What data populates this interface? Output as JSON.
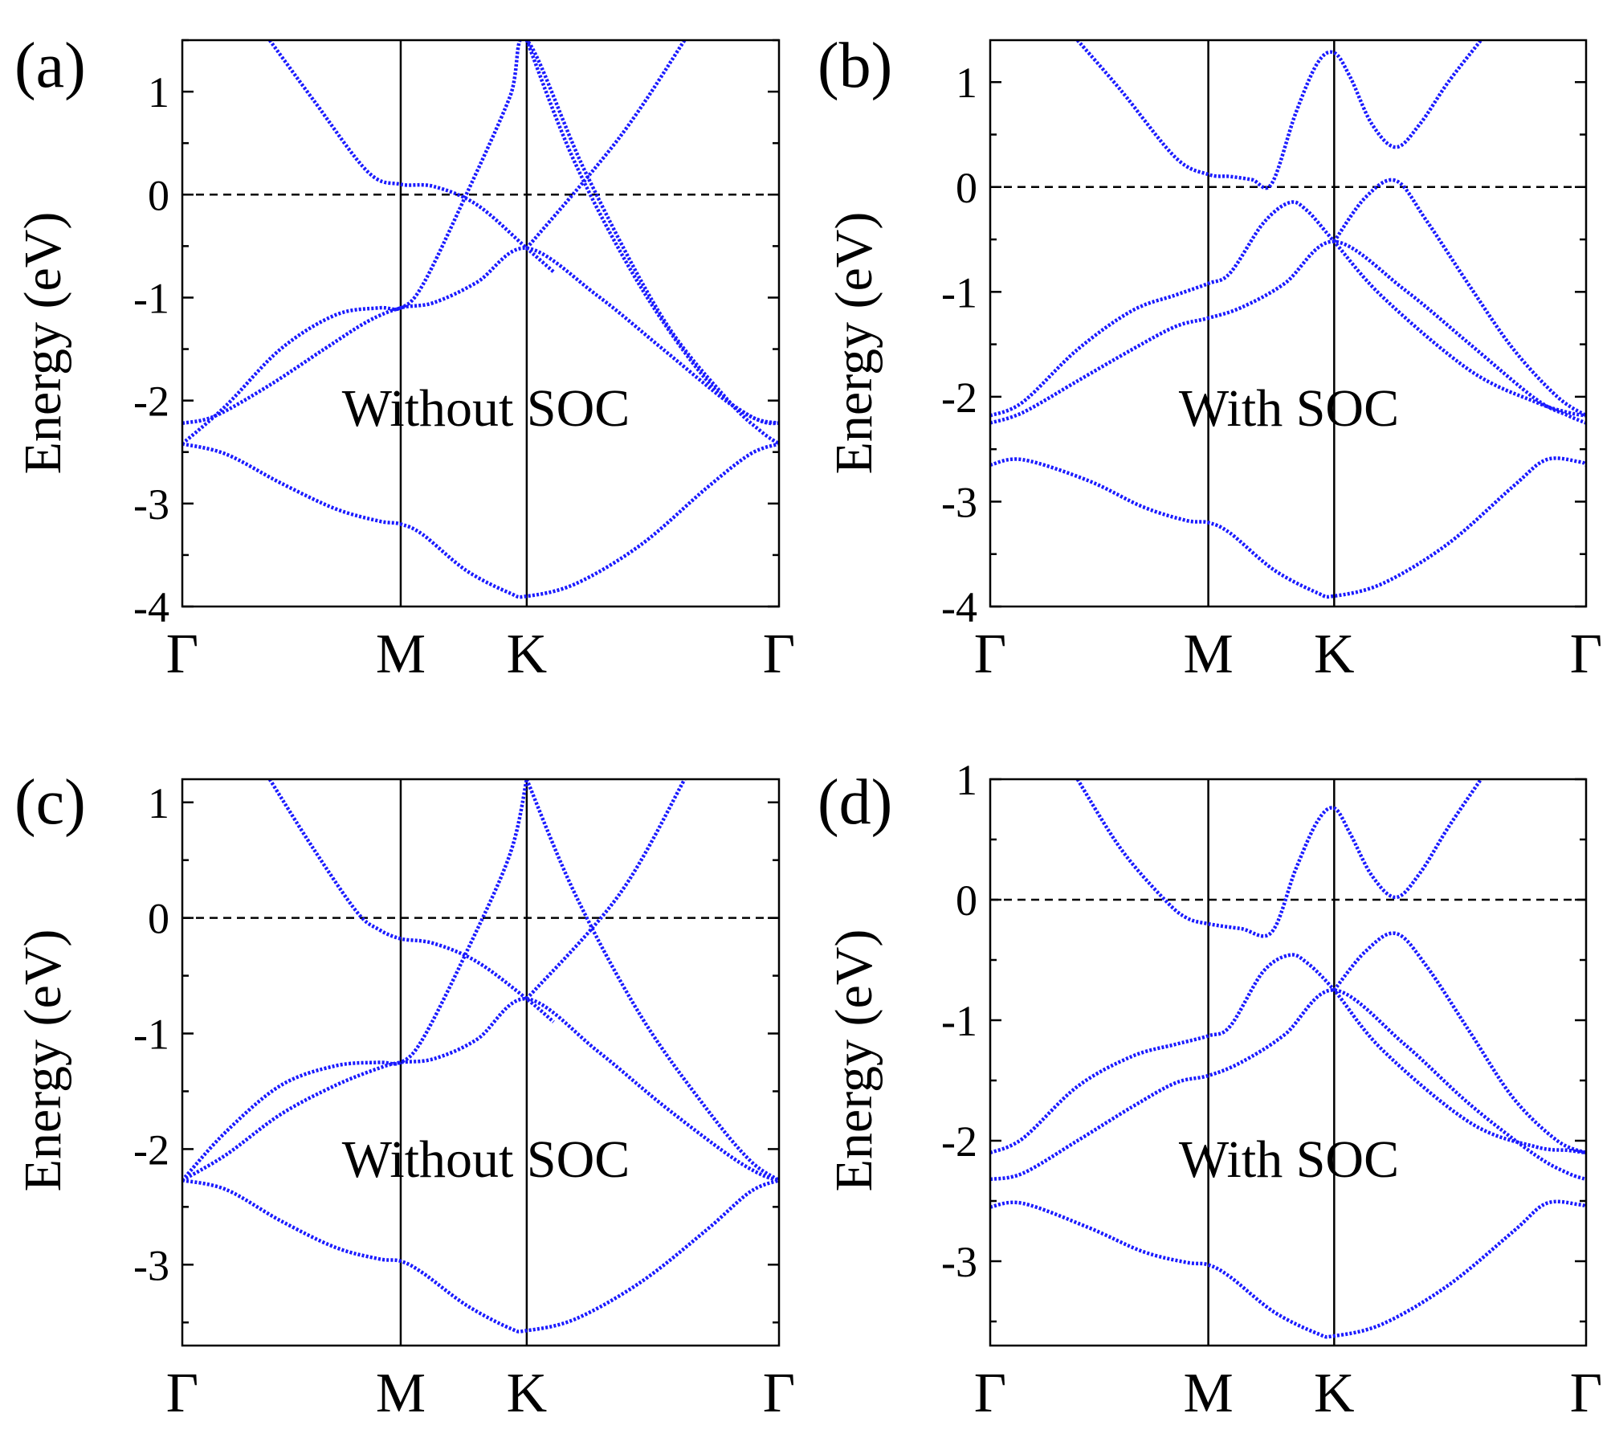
{
  "figure": {
    "axis_label": "Energy (eV)",
    "band_color": "#1a1aff"
  },
  "chart_data": [
    {
      "type": "line",
      "panel": "(a)",
      "annotation": "Without SOC",
      "ylabel": "Energy (eV)",
      "xlabel": "",
      "kpoints": [
        "Γ",
        "M",
        "K",
        "Γ"
      ],
      "kpoint_x": [
        0,
        1,
        1.577,
        2.732
      ],
      "xlim": [
        0,
        2.732
      ],
      "ylim": [
        -4,
        1.5
      ],
      "yticks": [
        -4,
        -3,
        -2,
        -1,
        0,
        1
      ],
      "ytick_labels": [
        "-4",
        "-3",
        "-2",
        "-1",
        "0",
        "1"
      ],
      "fermi_level": 0,
      "grid": false,
      "series": [
        {
          "name": "band 1",
          "x": [
            0,
            0.2,
            0.45,
            0.7,
            0.9,
            1.0,
            1.1,
            1.3,
            1.5,
            1.577,
            1.8,
            2.1,
            2.4,
            2.6,
            2.732
          ],
          "values": [
            -2.42,
            -2.52,
            -2.8,
            -3.05,
            -3.17,
            -3.2,
            -3.3,
            -3.65,
            -3.87,
            -3.9,
            -3.78,
            -3.4,
            -2.85,
            -2.52,
            -2.42
          ]
        },
        {
          "name": "band 2",
          "x": [
            0,
            0.15,
            0.4,
            0.65,
            0.85,
            1.0,
            1.15,
            1.35,
            1.577,
            1.9,
            2.2,
            2.5,
            2.65,
            2.732
          ],
          "values": [
            -2.22,
            -2.15,
            -1.85,
            -1.5,
            -1.23,
            -1.1,
            -1.05,
            -0.85,
            -0.52,
            -0.98,
            -1.5,
            -2.02,
            -2.2,
            -2.22
          ]
        },
        {
          "name": "band 3",
          "x": [
            0,
            0.2,
            0.45,
            0.7,
            0.9,
            1.0,
            1.1,
            1.3,
            1.5,
            1.577,
            1.85,
            2.2,
            2.5,
            2.65,
            2.732
          ],
          "values": [
            -2.42,
            -2.05,
            -1.5,
            -1.17,
            -1.1,
            -1.1,
            -0.88,
            0.0,
            0.95,
            1.5,
            0.2,
            -1.2,
            -2.0,
            -2.3,
            -2.42
          ]
        },
        {
          "name": "band 4",
          "x": [
            0.4,
            0.6,
            0.85,
            1.0,
            1.15,
            1.35,
            1.577,
            1.7
          ],
          "values": [
            1.5,
            0.92,
            0.22,
            0.1,
            0.08,
            -0.1,
            -0.52,
            -0.75
          ]
        },
        {
          "name": "band 5",
          "x": [
            1.577,
            1.8,
            2.1,
            2.4,
            2.6,
            2.732
          ],
          "values": [
            1.5,
            0.3,
            -0.9,
            -1.8,
            -2.15,
            -2.22
          ]
        },
        {
          "name": "band 6",
          "x": [
            1.577,
            2.0,
            2.3
          ],
          "values": [
            -0.52,
            0.55,
            1.5
          ]
        }
      ]
    },
    {
      "type": "line",
      "panel": "(b)",
      "annotation": "With SOC",
      "ylabel": "Energy (eV)",
      "xlabel": "",
      "kpoints": [
        "Γ",
        "M",
        "K",
        "Γ"
      ],
      "kpoint_x": [
        0,
        1,
        1.577,
        2.732
      ],
      "xlim": [
        0,
        2.732
      ],
      "ylim": [
        -4,
        1.4
      ],
      "yticks": [
        -4,
        -3,
        -2,
        -1,
        0,
        1
      ],
      "ytick_labels": [
        "-4",
        "-3",
        "-2",
        "-1",
        "0",
        "1"
      ],
      "fermi_level": 0,
      "grid": false,
      "series": [
        {
          "name": "band 1",
          "x": [
            0,
            0.15,
            0.45,
            0.7,
            0.9,
            1.0,
            1.1,
            1.3,
            1.5,
            1.577,
            1.8,
            2.1,
            2.4,
            2.55,
            2.7,
            2.732
          ],
          "values": [
            -2.65,
            -2.6,
            -2.8,
            -3.05,
            -3.18,
            -3.2,
            -3.3,
            -3.65,
            -3.87,
            -3.9,
            -3.78,
            -3.4,
            -2.85,
            -2.6,
            -2.62,
            -2.65
          ]
        },
        {
          "name": "band 2",
          "x": [
            0,
            0.15,
            0.4,
            0.65,
            0.85,
            1.0,
            1.15,
            1.35,
            1.577,
            1.9,
            2.2,
            2.5,
            2.65,
            2.732
          ],
          "values": [
            -2.25,
            -2.15,
            -1.85,
            -1.55,
            -1.33,
            -1.25,
            -1.15,
            -0.92,
            -0.52,
            -0.98,
            -1.5,
            -2.02,
            -2.18,
            -2.25
          ]
        },
        {
          "name": "band 3",
          "x": [
            0,
            0.15,
            0.4,
            0.65,
            0.85,
            1.0,
            1.1,
            1.25,
            1.37,
            1.45,
            1.577,
            1.8,
            2.2,
            2.5,
            2.65,
            2.732
          ],
          "values": [
            -2.18,
            -2.05,
            -1.55,
            -1.18,
            -1.03,
            -0.92,
            -0.82,
            -0.35,
            -0.15,
            -0.22,
            -0.52,
            -1.05,
            -1.75,
            -2.05,
            -2.15,
            -2.18
          ]
        },
        {
          "name": "band 4",
          "x": [
            0.4,
            0.6,
            0.85,
            1.0,
            1.1,
            1.2,
            1.29,
            1.4,
            1.5,
            1.577,
            1.65,
            1.75,
            1.86,
            1.97,
            2.1,
            2.25
          ],
          "values": [
            1.4,
            0.92,
            0.28,
            0.12,
            0.1,
            0.07,
            0.03,
            0.7,
            1.18,
            1.28,
            1.05,
            0.6,
            0.38,
            0.6,
            1.0,
            1.4
          ]
        },
        {
          "name": "band 5",
          "x": [
            1.577,
            1.72,
            1.86,
            2.0,
            2.2,
            2.4,
            2.6,
            2.732
          ],
          "values": [
            -0.52,
            -0.1,
            0.06,
            -0.32,
            -0.95,
            -1.55,
            -2.0,
            -2.18
          ]
        }
      ]
    },
    {
      "type": "line",
      "panel": "(c)",
      "annotation": "Without SOC",
      "ylabel": "Energy (eV)",
      "xlabel": "",
      "kpoints": [
        "Γ",
        "M",
        "K",
        "Γ"
      ],
      "kpoint_x": [
        0,
        1,
        1.577,
        2.732
      ],
      "xlim": [
        0,
        2.732
      ],
      "ylim": [
        -3.7,
        1.2
      ],
      "yticks": [
        -3,
        -2,
        -1,
        0,
        1
      ],
      "ytick_labels": [
        "-3",
        "-2",
        "-1",
        "0",
        "1"
      ],
      "fermi_level": 0,
      "grid": false,
      "series": [
        {
          "name": "band 1",
          "x": [
            0,
            0.2,
            0.45,
            0.7,
            0.9,
            1.0,
            1.1,
            1.3,
            1.5,
            1.577,
            1.8,
            2.1,
            2.4,
            2.6,
            2.732
          ],
          "values": [
            -2.27,
            -2.35,
            -2.62,
            -2.85,
            -2.95,
            -2.97,
            -3.07,
            -3.35,
            -3.55,
            -3.57,
            -3.47,
            -3.15,
            -2.7,
            -2.37,
            -2.27
          ]
        },
        {
          "name": "band 2",
          "x": [
            0,
            0.2,
            0.45,
            0.7,
            0.9,
            1.0,
            1.15,
            1.35,
            1.577,
            1.9,
            2.2,
            2.5,
            2.65,
            2.732
          ],
          "values": [
            -2.27,
            -2.05,
            -1.7,
            -1.45,
            -1.3,
            -1.25,
            -1.22,
            -1.05,
            -0.7,
            -1.15,
            -1.62,
            -2.05,
            -2.22,
            -2.27
          ]
        },
        {
          "name": "band 3",
          "x": [
            0,
            0.2,
            0.45,
            0.7,
            0.9,
            1.0,
            1.1,
            1.3,
            1.5,
            1.577
          ],
          "values": [
            -2.27,
            -1.85,
            -1.45,
            -1.28,
            -1.25,
            -1.25,
            -1.05,
            -0.3,
            0.55,
            1.2
          ]
        },
        {
          "name": "band 4",
          "x": [
            0.4,
            0.6,
            0.8,
            0.9,
            1.0,
            1.15,
            1.35,
            1.577,
            1.7
          ],
          "values": [
            1.2,
            0.6,
            0.05,
            -0.1,
            -0.18,
            -0.22,
            -0.38,
            -0.7,
            -0.9
          ]
        },
        {
          "name": "band 5",
          "x": [
            1.577,
            1.8,
            2.1,
            2.4,
            2.6,
            2.732
          ],
          "values": [
            1.2,
            0.2,
            -0.85,
            -1.65,
            -2.1,
            -2.27
          ]
        },
        {
          "name": "band 6",
          "x": [
            1.577,
            2.0,
            2.3
          ],
          "values": [
            -0.7,
            0.2,
            1.2
          ]
        }
      ]
    },
    {
      "type": "line",
      "panel": "(d)",
      "annotation": "With SOC",
      "ylabel": "Energy (eV)",
      "xlabel": "",
      "kpoints": [
        "Γ",
        "M",
        "K",
        "Γ"
      ],
      "kpoint_x": [
        0,
        1,
        1.577,
        2.732
      ],
      "xlim": [
        0,
        2.732
      ],
      "ylim": [
        -3.7,
        1.0
      ],
      "yticks": [
        -3,
        -2,
        -1,
        0,
        1
      ],
      "ytick_labels": [
        "-3",
        "-2",
        "-1",
        "0",
        "1"
      ],
      "fermi_level": 0,
      "grid": false,
      "series": [
        {
          "name": "band 1",
          "x": [
            0,
            0.15,
            0.45,
            0.7,
            0.9,
            1.0,
            1.1,
            1.3,
            1.5,
            1.577,
            1.8,
            2.1,
            2.4,
            2.55,
            2.7,
            2.732
          ],
          "values": [
            -2.55,
            -2.52,
            -2.72,
            -2.92,
            -3.01,
            -3.03,
            -3.13,
            -3.42,
            -3.6,
            -3.62,
            -3.52,
            -3.2,
            -2.75,
            -2.52,
            -2.53,
            -2.55
          ]
        },
        {
          "name": "band 2",
          "x": [
            0,
            0.15,
            0.4,
            0.65,
            0.85,
            1.0,
            1.15,
            1.35,
            1.577,
            1.9,
            2.2,
            2.5,
            2.65,
            2.732
          ],
          "values": [
            -2.32,
            -2.27,
            -2.0,
            -1.72,
            -1.52,
            -1.46,
            -1.35,
            -1.12,
            -0.75,
            -1.2,
            -1.7,
            -2.12,
            -2.27,
            -2.32
          ]
        },
        {
          "name": "band 3",
          "x": [
            0,
            0.15,
            0.4,
            0.65,
            0.85,
            1.0,
            1.1,
            1.25,
            1.37,
            1.45,
            1.577,
            1.8,
            2.2,
            2.5,
            2.65,
            2.732
          ],
          "values": [
            -2.1,
            -1.98,
            -1.55,
            -1.3,
            -1.2,
            -1.13,
            -1.05,
            -0.6,
            -0.46,
            -0.52,
            -0.75,
            -1.25,
            -1.85,
            -2.05,
            -2.08,
            -2.1
          ]
        },
        {
          "name": "band 4",
          "x": [
            0.4,
            0.6,
            0.8,
            0.9,
            1.0,
            1.15,
            1.29,
            1.4,
            1.5,
            1.577,
            1.65,
            1.75,
            1.86,
            1.97,
            2.1,
            2.25
          ],
          "values": [
            1.0,
            0.42,
            0.0,
            -0.15,
            -0.2,
            -0.24,
            -0.27,
            0.25,
            0.65,
            0.76,
            0.55,
            0.2,
            0.02,
            0.22,
            0.6,
            1.0
          ]
        },
        {
          "name": "band 5",
          "x": [
            1.577,
            1.72,
            1.86,
            2.0,
            2.2,
            2.4,
            2.6,
            2.732
          ],
          "values": [
            -0.75,
            -0.43,
            -0.28,
            -0.55,
            -1.1,
            -1.65,
            -2.0,
            -2.1
          ]
        }
      ]
    }
  ]
}
